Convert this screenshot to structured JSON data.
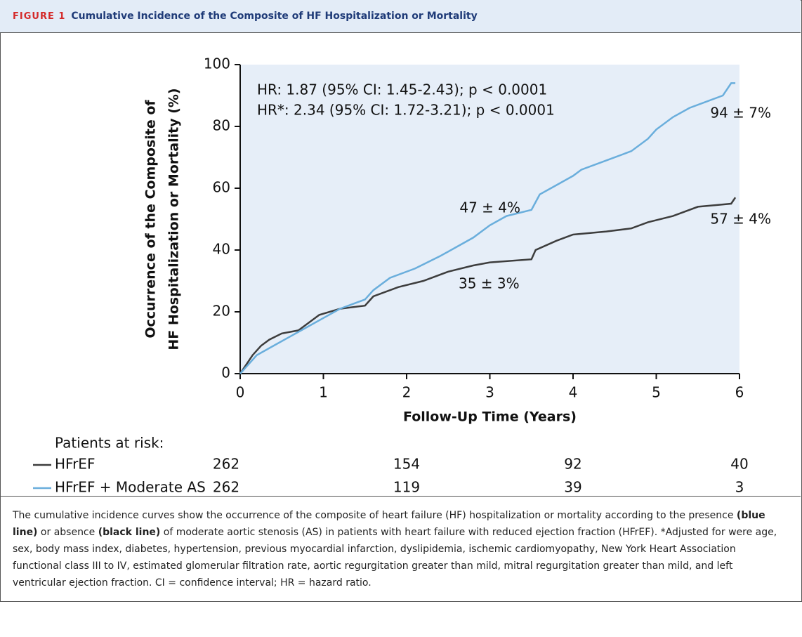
{
  "figure_label": "FIGURE 1",
  "figure_title": "Cumulative Incidence of the Composite of HF Hospitalization or Mortality",
  "chart_data": {
    "type": "line",
    "xlabel": "Follow-Up Time (Years)",
    "ylabel": [
      "Occurrence of the Composite of",
      "HF Hospitalization or Mortality (%)"
    ],
    "xlim": [
      0,
      6
    ],
    "xticks": [
      0,
      1,
      2,
      3,
      4,
      5,
      6
    ],
    "ylim": [
      0,
      100
    ],
    "yticks": [
      0,
      20,
      40,
      60,
      80,
      100
    ],
    "background": "#e6eef8",
    "annotations": [
      "HR: 1.87  (95% CI: 1.45-2.43); p < 0.0001",
      "HR*: 2.34 (95% CI: 1.72-3.21); p < 0.0001",
      "94 ± 7%",
      "57 ± 4%",
      "47 ± 4%",
      "35 ± 3%"
    ],
    "risk_title": "Patients at risk:",
    "series": [
      {
        "name": "HFrEF",
        "color": "#3d3d3d",
        "x": [
          0,
          0.05,
          0.1,
          0.15,
          0.25,
          0.35,
          0.5,
          0.7,
          0.8,
          0.95,
          1.2,
          1.5,
          1.6,
          1.9,
          2.2,
          2.5,
          2.8,
          3.0,
          3.5,
          3.55,
          3.8,
          4.0,
          4.4,
          4.7,
          4.9,
          5.2,
          5.5,
          5.9,
          5.95
        ],
        "values": [
          0,
          2,
          4,
          6,
          9,
          11,
          13,
          14,
          16,
          19,
          21,
          22,
          25,
          28,
          30,
          33,
          35,
          36,
          37,
          40,
          43,
          45,
          46,
          47,
          49,
          51,
          54,
          55,
          57
        ],
        "at_risk": [
          262,
          154,
          92,
          40
        ]
      },
      {
        "name": "HFrEF + Moderate AS",
        "color": "#6aaedc",
        "x": [
          0,
          0.1,
          0.2,
          0.4,
          0.6,
          0.8,
          1.0,
          1.2,
          1.5,
          1.6,
          1.8,
          2.1,
          2.4,
          2.6,
          2.8,
          3.0,
          3.2,
          3.5,
          3.6,
          3.8,
          4.0,
          4.1,
          4.4,
          4.7,
          4.9,
          5.0,
          5.2,
          5.4,
          5.6,
          5.8,
          5.9,
          5.95
        ],
        "values": [
          0,
          3,
          6,
          9,
          12,
          15,
          18,
          21,
          24,
          27,
          31,
          34,
          38,
          41,
          44,
          48,
          51,
          53,
          58,
          61,
          64,
          66,
          69,
          72,
          76,
          79,
          83,
          86,
          88,
          90,
          94,
          94
        ],
        "at_risk": [
          262,
          119,
          39,
          3
        ]
      }
    ]
  },
  "caption": [
    "The cumulative incidence curves show the occurrence of the composite of heart failure (HF) hospitalization or mortality according to the presence ",
    "(blue line)",
    " or absence ",
    "(black line)",
    " of moderate aortic stenosis (AS) in patients with heart failure with reduced ejection fraction (HFrEF). *Adjusted for were age, sex, body mass index, diabetes, hypertension, previous myocardial infarction, dyslipidemia, ischemic cardiomyopathy, New York Heart Association functional class III to IV, estimated glomerular filtration rate, aortic regurgitation greater than mild, mitral regurgitation greater than mild, and left ventricular ejection fraction. CI = confidence interval; HR = hazard ratio."
  ]
}
